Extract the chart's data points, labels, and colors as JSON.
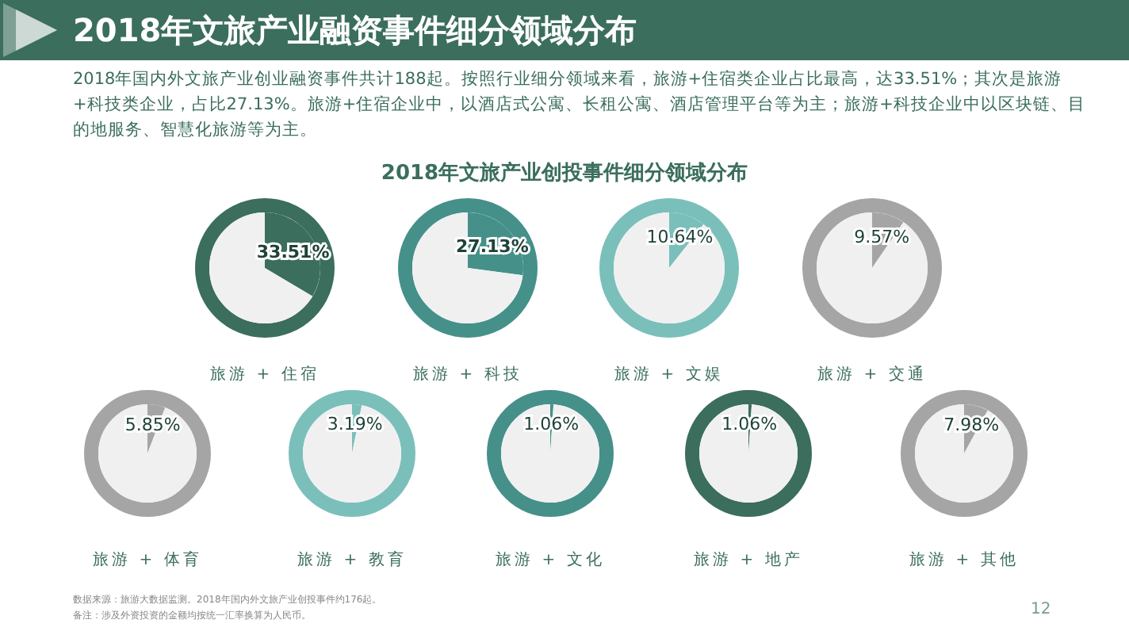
{
  "chart_data": [
    {
      "type": "other",
      "title": "2018年文旅产业融资事件细分领域分布",
      "subtitle": "2018年国内外文旅产业创业融资事件共计188起。按照行业细分领域来看，旅游+住宿类企业占比最高，达33.51%；其次是旅游+科技类企业，占比27.13%。旅游+住宿企业中，以酒店式公寓、长租公寓、酒店管理平台等为主；旅游+科技企业中以区块链、目的地服务、智慧化旅游等为主。",
      "annotations": [
        "2018年文旅产业创投事件细分领域分布",
        "数据来源：旅游大数据监测。2018年国内外文旅产业创投事件约176起。",
        "备注：涉及外资投资的金额均按统一汇率换算为人民币。",
        "12"
      ]
    },
    {
      "type": "pie",
      "xlabel": "旅游 + 住宿",
      "categories": [
        null,
        null
      ],
      "values": [
        33.51,
        66.49
      ],
      "value_labels": [
        "33.51%",
        null
      ],
      "colors": [
        "#3b6e5c",
        "#f0f0f0"
      ]
    },
    {
      "type": "pie",
      "xlabel": "旅游 + 科技",
      "categories": [
        null,
        null
      ],
      "values": [
        27.13,
        72.87
      ],
      "value_labels": [
        "27.13%",
        null
      ],
      "colors": [
        "#46908a",
        "#f0f0f0"
      ]
    },
    {
      "type": "pie",
      "xlabel": "旅游 + 文娱",
      "categories": [
        null,
        null
      ],
      "values": [
        10.64,
        89.36
      ],
      "value_labels": [
        "10.64%",
        null
      ],
      "colors": [
        "#7bbfbb",
        "#f0f0f0"
      ]
    },
    {
      "type": "pie",
      "xlabel": "旅游 + 交通",
      "categories": [
        null,
        null
      ],
      "values": [
        9.57,
        90.43
      ],
      "value_labels": [
        "9.57%",
        null
      ],
      "colors": [
        "#a5a5a5",
        "#f0f0f0"
      ]
    },
    {
      "type": "pie",
      "xlabel": "旅游 + 体育",
      "categories": [
        null,
        null
      ],
      "values": [
        5.85,
        94.15
      ],
      "value_labels": [
        "5.85%",
        null
      ],
      "colors": [
        "#a5a5a5",
        "#f0f0f0"
      ]
    },
    {
      "type": "pie",
      "xlabel": "旅游 + 教育",
      "categories": [
        null,
        null
      ],
      "values": [
        3.19,
        96.81
      ],
      "value_labels": [
        "3.19%",
        null
      ],
      "colors": [
        "#7bbfbb",
        "#f0f0f0"
      ]
    },
    {
      "type": "pie",
      "xlabel": "旅游 + 文化",
      "categories": [
        null,
        null
      ],
      "values": [
        1.06,
        98.94
      ],
      "value_labels": [
        "1.06%",
        null
      ],
      "colors": [
        "#46908a",
        "#f0f0f0"
      ]
    },
    {
      "type": "pie",
      "xlabel": "旅游 + 地产",
      "categories": [
        null,
        null
      ],
      "values": [
        1.06,
        98.94
      ],
      "value_labels": [
        "1.06%",
        null
      ],
      "colors": [
        "#3b6e5c",
        "#f0f0f0"
      ]
    },
    {
      "type": "pie",
      "xlabel": "旅游 + 其他",
      "categories": [
        null,
        null
      ],
      "values": [
        7.98,
        92.02
      ],
      "value_labels": [
        "7.98%",
        null
      ],
      "colors": [
        "#a5a5a5",
        "#f0f0f0"
      ]
    }
  ]
}
